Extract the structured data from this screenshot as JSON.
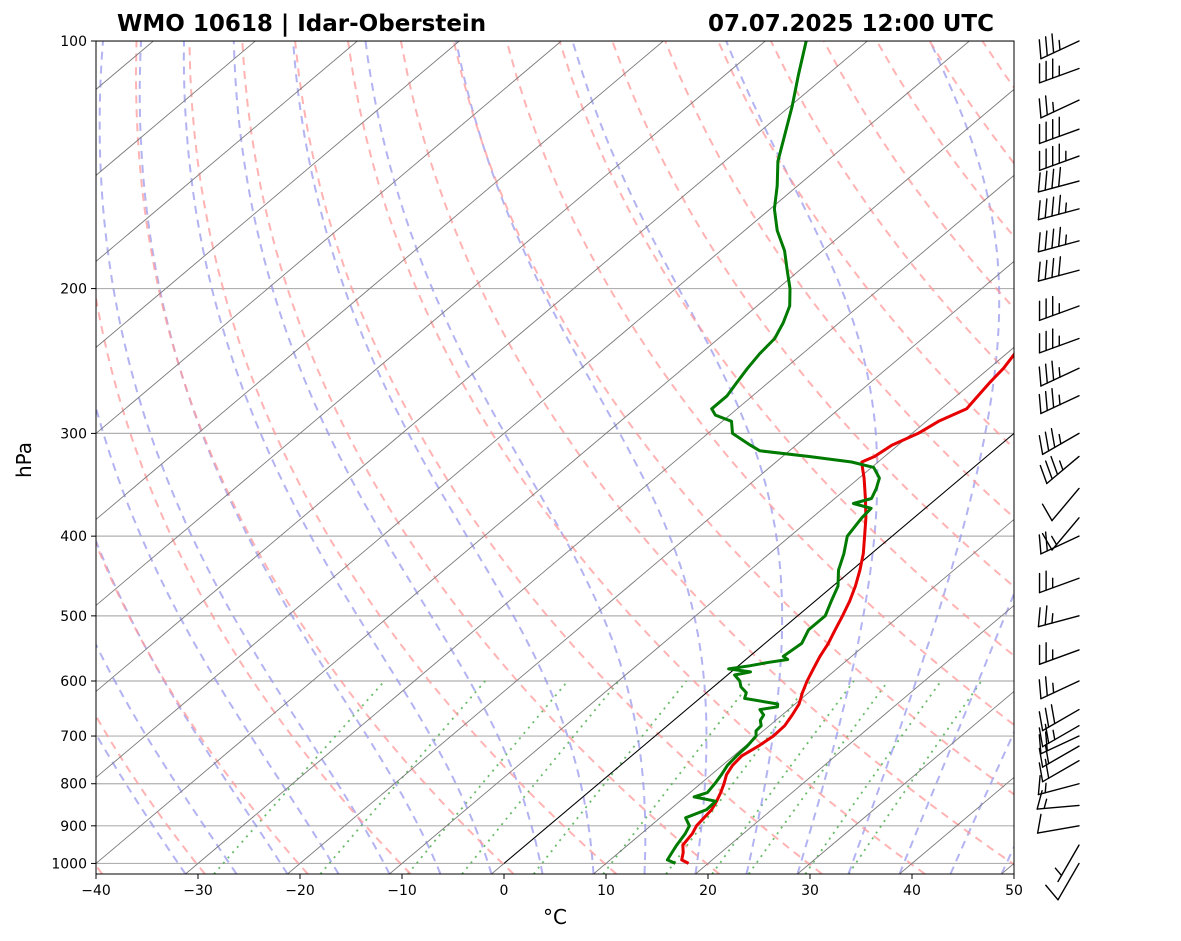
{
  "chart_data": {
    "type": "line",
    "title_left": "WMO 10618 | Idar-Oberstein",
    "title_right": "07.07.2025 12:00 UTC",
    "xlabel": "°C",
    "ylabel": "hPa",
    "xlim": [
      -40,
      50
    ],
    "ylim": [
      1030,
      100
    ],
    "log_y": true,
    "grid": true,
    "x_ticks": [
      -40,
      -30,
      -20,
      -10,
      0,
      10,
      20,
      30,
      40,
      50
    ],
    "x_tick_labels": [
      "−40",
      "−30",
      "−20",
      "−10",
      "0",
      "10",
      "20",
      "30",
      "40",
      "50"
    ],
    "y_ticks": [
      100,
      200,
      300,
      400,
      500,
      600,
      700,
      800,
      900,
      1000
    ],
    "y_tick_labels": [
      "100",
      "200",
      "300",
      "400",
      "500",
      "600",
      "700",
      "800",
      "900",
      "1000"
    ],
    "colors": {
      "temperature": "#e60000",
      "dewpoint": "#007a00",
      "isotherm": "#7a7a7a",
      "dry_adiabat": "#ff9999",
      "moist_adiabat": "#9999ee",
      "mixing_ratio": "#44aa44",
      "gridline": "#b0b0b0",
      "reference_line": "#000000"
    },
    "series": [
      {
        "values": [
          [
            1000,
            18.1
          ],
          [
            990,
            17.0
          ],
          [
            970,
            16.3
          ],
          [
            950,
            15.4
          ],
          [
            920,
            15.0
          ],
          [
            900,
            14.5
          ],
          [
            880,
            14.3
          ],
          [
            860,
            14.1
          ],
          [
            840,
            13.6
          ],
          [
            820,
            13.0
          ],
          [
            800,
            12.3
          ],
          [
            780,
            11.5
          ],
          [
            760,
            11.0
          ],
          [
            740,
            10.8
          ],
          [
            720,
            11.3
          ],
          [
            700,
            11.6
          ],
          [
            680,
            11.5
          ],
          [
            660,
            11.0
          ],
          [
            640,
            10.4
          ],
          [
            620,
            9.4
          ],
          [
            600,
            8.5
          ],
          [
            580,
            7.7
          ],
          [
            560,
            6.9
          ],
          [
            540,
            6.2
          ],
          [
            520,
            5.3
          ],
          [
            500,
            4.4
          ],
          [
            480,
            3.4
          ],
          [
            460,
            2.2
          ],
          [
            440,
            0.8
          ],
          [
            420,
            -0.8
          ],
          [
            400,
            -2.7
          ],
          [
            380,
            -4.7
          ],
          [
            360,
            -7.0
          ],
          [
            340,
            -9.5
          ],
          [
            330,
            -10.9
          ],
          [
            325,
            -11.6
          ],
          [
            320,
            -11.0
          ],
          [
            310,
            -10.6
          ],
          [
            300,
            -9.4
          ],
          [
            290,
            -8.8
          ],
          [
            280,
            -7.5
          ],
          [
            270,
            -7.9
          ],
          [
            260,
            -8.3
          ],
          [
            250,
            -8.6
          ],
          [
            240,
            -9.2
          ],
          [
            230,
            -9.9
          ],
          [
            220,
            -11.0
          ],
          [
            210,
            -12.2
          ],
          [
            200,
            -13.4
          ],
          [
            190,
            -15.0
          ],
          [
            180,
            -16.6
          ],
          [
            170,
            -17.8
          ],
          [
            160,
            -19.6
          ],
          [
            150,
            -21.0
          ],
          [
            140,
            -22.9
          ],
          [
            130,
            -25.0
          ],
          [
            120,
            -27.2
          ],
          [
            110,
            -30.0
          ],
          [
            100,
            -33.0
          ]
        ]
      },
      {
        "values": [
          [
            1000,
            16.8
          ],
          [
            990,
            15.6
          ],
          [
            970,
            15.2
          ],
          [
            950,
            14.8
          ],
          [
            920,
            14.3
          ],
          [
            900,
            13.8
          ],
          [
            880,
            12.5
          ],
          [
            860,
            13.6
          ],
          [
            840,
            13.5
          ],
          [
            830,
            10.9
          ],
          [
            820,
            11.7
          ],
          [
            800,
            11.4
          ],
          [
            780,
            11.0
          ],
          [
            760,
            10.5
          ],
          [
            740,
            10.3
          ],
          [
            720,
            10.2
          ],
          [
            700,
            9.9
          ],
          [
            690,
            9.3
          ],
          [
            680,
            9.2
          ],
          [
            670,
            8.5
          ],
          [
            660,
            8.2
          ],
          [
            650,
            7.2
          ],
          [
            645,
            8.6
          ],
          [
            640,
            8.3
          ],
          [
            630,
            4.4
          ],
          [
            620,
            3.9
          ],
          [
            610,
            2.7
          ],
          [
            600,
            1.9
          ],
          [
            590,
            0.7
          ],
          [
            585,
            1.9
          ],
          [
            580,
            -0.6
          ],
          [
            575,
            1.1
          ],
          [
            570,
            2.4
          ],
          [
            565,
            4.1
          ],
          [
            560,
            3.3
          ],
          [
            540,
            3.6
          ],
          [
            520,
            2.7
          ],
          [
            500,
            2.7
          ],
          [
            480,
            1.6
          ],
          [
            460,
            0.5
          ],
          [
            440,
            -1.3
          ],
          [
            420,
            -2.7
          ],
          [
            400,
            -4.4
          ],
          [
            380,
            -5.1
          ],
          [
            370,
            -5.3
          ],
          [
            365,
            -7.6
          ],
          [
            360,
            -6.4
          ],
          [
            350,
            -7.1
          ],
          [
            340,
            -8.0
          ],
          [
            330,
            -9.8
          ],
          [
            325,
            -12.6
          ],
          [
            320,
            -17.4
          ],
          [
            315,
            -22.9
          ],
          [
            310,
            -24.5
          ],
          [
            300,
            -27.6
          ],
          [
            290,
            -29.1
          ],
          [
            285,
            -31.4
          ],
          [
            280,
            -32.5
          ],
          [
            270,
            -32.5
          ],
          [
            260,
            -33.1
          ],
          [
            250,
            -33.7
          ],
          [
            240,
            -34.2
          ],
          [
            230,
            -34.5
          ],
          [
            220,
            -35.5
          ],
          [
            210,
            -36.8
          ],
          [
            200,
            -38.8
          ],
          [
            190,
            -41.2
          ],
          [
            180,
            -43.7
          ],
          [
            170,
            -46.8
          ],
          [
            160,
            -49.6
          ],
          [
            150,
            -52.0
          ],
          [
            140,
            -54.8
          ],
          [
            130,
            -57.2
          ],
          [
            120,
            -59.8
          ],
          [
            110,
            -62.8
          ],
          [
            100,
            -66.0
          ]
        ]
      }
    ],
    "reference_line": [
      [
        1000,
        0
      ],
      [
        300,
        50
      ]
    ],
    "wind_barbs": [
      {
        "p": 1000,
        "dir": 210,
        "spd": 10
      },
      {
        "p": 950,
        "dir": 210,
        "spd": 5
      },
      {
        "p": 900,
        "dir": 260,
        "spd": 10
      },
      {
        "p": 850,
        "dir": 265,
        "spd": 15
      },
      {
        "p": 800,
        "dir": 255,
        "spd": 15
      },
      {
        "p": 750,
        "dir": 240,
        "spd": 20
      },
      {
        "p": 720,
        "dir": 240,
        "spd": 20
      },
      {
        "p": 700,
        "dir": 245,
        "spd": 20
      },
      {
        "p": 680,
        "dir": 240,
        "spd": 25
      },
      {
        "p": 650,
        "dir": 240,
        "spd": 30
      },
      {
        "p": 600,
        "dir": 245,
        "spd": 25
      },
      {
        "p": 550,
        "dir": 250,
        "spd": 25
      },
      {
        "p": 500,
        "dir": 255,
        "spd": 25
      },
      {
        "p": 450,
        "dir": 250,
        "spd": 25
      },
      {
        "p": 400,
        "dir": 245,
        "spd": 20
      },
      {
        "p": 380,
        "dir": 220,
        "spd": 15
      },
      {
        "p": 350,
        "dir": 220,
        "spd": 10
      },
      {
        "p": 320,
        "dir": 230,
        "spd": 35
      },
      {
        "p": 300,
        "dir": 240,
        "spd": 35
      },
      {
        "p": 270,
        "dir": 245,
        "spd": 35
      },
      {
        "p": 250,
        "dir": 245,
        "spd": 35
      },
      {
        "p": 230,
        "dir": 250,
        "spd": 35
      },
      {
        "p": 210,
        "dir": 250,
        "spd": 35
      },
      {
        "p": 190,
        "dir": 255,
        "spd": 40
      },
      {
        "p": 175,
        "dir": 255,
        "spd": 45
      },
      {
        "p": 160,
        "dir": 255,
        "spd": 45
      },
      {
        "p": 148,
        "dir": 255,
        "spd": 40
      },
      {
        "p": 138,
        "dir": 250,
        "spd": 45
      },
      {
        "p": 128,
        "dir": 250,
        "spd": 40
      },
      {
        "p": 118,
        "dir": 245,
        "spd": 25
      },
      {
        "p": 108,
        "dir": 250,
        "spd": 35
      },
      {
        "p": 100,
        "dir": 245,
        "spd": 35
      }
    ]
  }
}
